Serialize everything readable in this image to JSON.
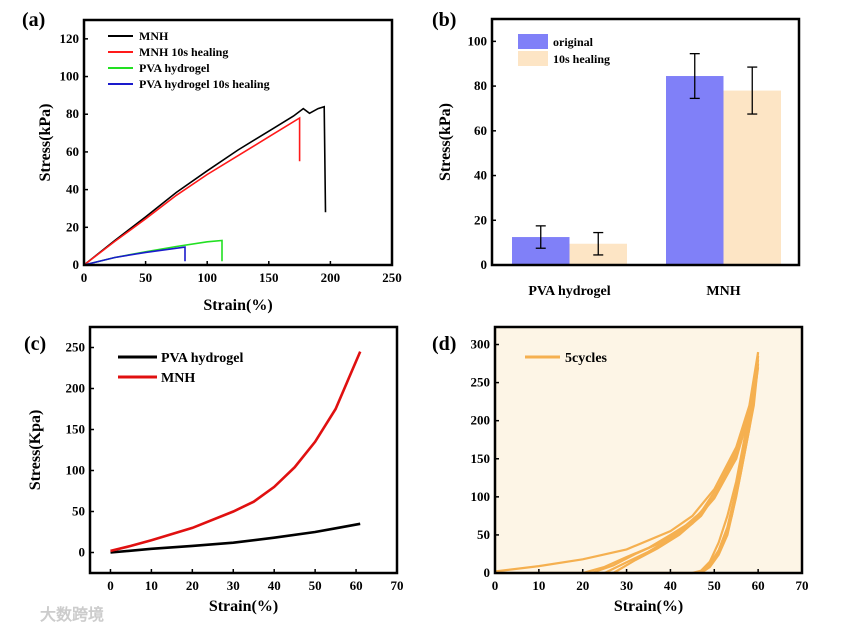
{
  "panel_labels": [
    "(a)",
    "(b)",
    "(c)",
    "(d)"
  ],
  "watermark": "大数跨境",
  "chart_data": [
    {
      "type": "line",
      "title": "",
      "xlabel": "Strain(%)",
      "ylabel": "Stress(kPa)",
      "xlim": [
        0,
        250
      ],
      "ylim": [
        0,
        130
      ],
      "xticks": [
        "0",
        "50",
        "100",
        "150",
        "200",
        "250"
      ],
      "yticks": [
        "0",
        "20",
        "40",
        "60",
        "80",
        "100",
        "120"
      ],
      "legend": "top-left",
      "series": [
        {
          "name": "MNH",
          "color": "#000000",
          "points": [
            [
              0,
              0
            ],
            [
              25,
              13
            ],
            [
              50,
              25.5
            ],
            [
              75,
              38.5
            ],
            [
              100,
              50
            ],
            [
              125,
              61
            ],
            [
              150,
              71
            ],
            [
              170,
              79
            ],
            [
              178,
              83
            ],
            [
              183,
              80.5
            ],
            [
              190,
              83
            ],
            [
              195,
              84
            ],
            [
              196,
              28
            ]
          ]
        },
        {
          "name": "MNH 10s healing",
          "color": "#ff1a1a",
          "points": [
            [
              0,
              0
            ],
            [
              25,
              12.5
            ],
            [
              50,
              24.5
            ],
            [
              75,
              37
            ],
            [
              100,
              48
            ],
            [
              125,
              58
            ],
            [
              150,
              68
            ],
            [
              175,
              78
            ],
            [
              175,
              55
            ]
          ]
        },
        {
          "name": "PVA hydrogel",
          "color": "#22e022",
          "points": [
            [
              0,
              0
            ],
            [
              25,
              4
            ],
            [
              50,
              7
            ],
            [
              75,
              9.8
            ],
            [
              100,
              12.3
            ],
            [
              112,
              13
            ],
            [
              112,
              2
            ]
          ]
        },
        {
          "name": "PVA hydrogel 10s healing",
          "color": "#1a1acc",
          "points": [
            [
              0,
              0
            ],
            [
              25,
              4
            ],
            [
              50,
              6.7
            ],
            [
              82,
              9.5
            ],
            [
              82,
              2
            ]
          ]
        }
      ]
    },
    {
      "type": "bar",
      "title": "",
      "xlabel": "",
      "ylabel": "Stress(kPa)",
      "ylim": [
        0,
        110
      ],
      "yticks": [
        "0",
        "20",
        "40",
        "60",
        "80",
        "100"
      ],
      "categories": [
        "PVA hydrogel",
        "MNH"
      ],
      "legend": "top-left",
      "series": [
        {
          "name": "original",
          "color": "#8080f8",
          "values": [
            12.5,
            84.5
          ],
          "errors": [
            5,
            10
          ]
        },
        {
          "name": "10s healing",
          "color": "#fde5c5",
          "values": [
            9.5,
            78
          ],
          "errors": [
            5,
            10.5
          ]
        }
      ]
    },
    {
      "type": "line",
      "title": "",
      "xlabel": "Strain(%)",
      "ylabel": "Stress(Kpa)",
      "xlim": [
        -5,
        70
      ],
      "ylim": [
        -25,
        275
      ],
      "xticks": [
        "0",
        "10",
        "20",
        "30",
        "40",
        "50",
        "60",
        "70"
      ],
      "yticks": [
        "0",
        "50",
        "100",
        "150",
        "200",
        "250"
      ],
      "legend": "top-left",
      "series": [
        {
          "name": "PVA hydrogel",
          "color": "#000000",
          "points": [
            [
              0,
              0
            ],
            [
              10,
              4.5
            ],
            [
              20,
              8
            ],
            [
              30,
              12
            ],
            [
              40,
              18
            ],
            [
              50,
              25
            ],
            [
              55,
              29.5
            ],
            [
              61,
              35
            ]
          ]
        },
        {
          "name": "MNH",
          "color": "#e01010",
          "points": [
            [
              0,
              2
            ],
            [
              5,
              8
            ],
            [
              10,
              15
            ],
            [
              20,
              30
            ],
            [
              30,
              50
            ],
            [
              35,
              62
            ],
            [
              40,
              80
            ],
            [
              45,
              104
            ],
            [
              50,
              135
            ],
            [
              55,
              175
            ],
            [
              58,
              210
            ],
            [
              61,
              245
            ]
          ]
        }
      ]
    },
    {
      "type": "line",
      "title": "",
      "xlabel": "Strain(%)",
      "ylabel": "",
      "xlim": [
        0,
        70
      ],
      "ylim": [
        0,
        323
      ],
      "xticks": [
        "0",
        "10",
        "20",
        "30",
        "40",
        "50",
        "60",
        "70"
      ],
      "yticks": [
        "0",
        "50",
        "100",
        "150",
        "200",
        "250",
        "300"
      ],
      "legend": "top-left",
      "series": [
        {
          "name": "5cycles",
          "color": "#f5b050",
          "loops": [
            [
              [
                0,
                2
              ],
              [
                10,
                9
              ],
              [
                20,
                18
              ],
              [
                30,
                31
              ],
              [
                40,
                55
              ],
              [
                45,
                75
              ],
              [
                50,
                110
              ],
              [
                55,
                165
              ],
              [
                58,
                220
              ],
              [
                60,
                290
              ],
              [
                59,
                240
              ],
              [
                57,
                180
              ],
              [
                55,
                120
              ],
              [
                53,
                75
              ],
              [
                51,
                40
              ],
              [
                49,
                15
              ],
              [
                47,
                3
              ],
              [
                45,
                0
              ],
              [
                0,
                0
              ]
            ],
            [
              [
                20,
                0
              ],
              [
                25,
                8
              ],
              [
                30,
                21
              ],
              [
                35,
                33
              ],
              [
                40,
                50
              ],
              [
                45,
                68
              ],
              [
                50,
                100
              ],
              [
                55,
                150
              ],
              [
                58,
                210
              ],
              [
                60,
                285
              ],
              [
                59,
                230
              ],
              [
                57,
                170
              ],
              [
                55,
                110
              ],
              [
                53,
                60
              ],
              [
                51,
                30
              ],
              [
                49,
                12
              ],
              [
                47,
                2
              ],
              [
                46,
                0
              ]
            ],
            [
              [
                22,
                0
              ],
              [
                27,
                10
              ],
              [
                32,
                25
              ],
              [
                37,
                38
              ],
              [
                42,
                55
              ],
              [
                47,
                80
              ],
              [
                51,
                115
              ],
              [
                55,
                160
              ],
              [
                58,
                215
              ],
              [
                60,
                280
              ],
              [
                59,
                225
              ],
              [
                57,
                165
              ],
              [
                55,
                105
              ],
              [
                53,
                55
              ],
              [
                51,
                27
              ],
              [
                49,
                10
              ],
              [
                47,
                1
              ]
            ],
            [
              [
                25,
                0
              ],
              [
                30,
                14
              ],
              [
                35,
                28
              ],
              [
                40,
                45
              ],
              [
                45,
                65
              ],
              [
                50,
                98
              ],
              [
                54,
                140
              ],
              [
                57,
                190
              ],
              [
                60,
                275
              ],
              [
                59,
                220
              ],
              [
                57,
                160
              ],
              [
                55,
                100
              ],
              [
                53,
                50
              ],
              [
                51,
                24
              ],
              [
                49,
                8
              ],
              [
                47,
                0
              ]
            ],
            [
              [
                27,
                0
              ],
              [
                32,
                17
              ],
              [
                37,
                32
              ],
              [
                42,
                50
              ],
              [
                47,
                75
              ],
              [
                51,
                110
              ],
              [
                55,
                155
              ],
              [
                58,
                205
              ],
              [
                60,
                270
              ],
              [
                58,
                190
              ],
              [
                56,
                130
              ],
              [
                54,
                75
              ],
              [
                52,
                40
              ],
              [
                50,
                18
              ],
              [
                48,
                5
              ],
              [
                46,
                0
              ]
            ]
          ]
        }
      ]
    }
  ]
}
